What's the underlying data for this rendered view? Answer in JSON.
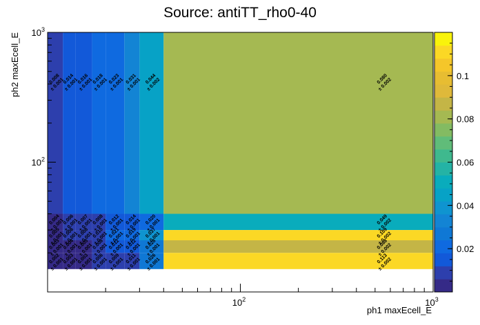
{
  "chart_data": {
    "type": "heatmap",
    "title": "Source: antiTT_rho0-40",
    "xlabel": "ph1 maxEcell_E",
    "ylabel": "ph2 maxEcell_E",
    "x_scale": "log",
    "y_scale": "log",
    "xlim": [
      10,
      1000
    ],
    "ylim": [
      10,
      1000
    ],
    "x_edges": [
      10,
      12,
      14,
      17,
      20,
      25,
      30,
      40,
      1000
    ],
    "y_edges": [
      10,
      15,
      20,
      25,
      30,
      40,
      1000
    ],
    "x_ticks": [
      {
        "value": 100,
        "base": "10",
        "exp": "2"
      },
      {
        "value": 1000,
        "base": "10",
        "exp": "3"
      }
    ],
    "y_ticks": [
      {
        "value": 100,
        "base": "10",
        "exp": "2"
      },
      {
        "value": 1000,
        "base": "10",
        "exp": "3"
      }
    ],
    "zlim": [
      0,
      0.12
    ],
    "colorbar_ticks": [
      "0.02",
      "0.04",
      "0.06",
      "0.08",
      "0.1"
    ],
    "colorbar_tick_values": [
      0.02,
      0.04,
      0.06,
      0.08,
      0.1
    ],
    "palette": [
      "#352a87",
      "#2d3fad",
      "#1259d9",
      "#0f6ae0",
      "#0f78d5",
      "#1384d4",
      "#0f94d0",
      "#07a2c6",
      "#09acbc",
      "#24b3a5",
      "#3fb98e",
      "#60bc79",
      "#83bb62",
      "#a5b952",
      "#c4b546",
      "#dfb93a",
      "#e7bd32",
      "#f5c62a",
      "#fbd825",
      "#f9f30b"
    ],
    "grid": false,
    "cells": [
      {
        "ix": 0,
        "iy": 5,
        "value": 0.008,
        "label": "0.008",
        "error": "± 0.001"
      },
      {
        "ix": 1,
        "iy": 5,
        "value": 0.014,
        "label": "0.014",
        "error": "± 0.001"
      },
      {
        "ix": 2,
        "iy": 5,
        "value": 0.016,
        "label": "0.016",
        "error": "± 0.001"
      },
      {
        "ix": 3,
        "iy": 5,
        "value": 0.018,
        "label": "0.018",
        "error": "± 0.001"
      },
      {
        "ix": 4,
        "iy": 5,
        "value": 0.023,
        "label": "0.023",
        "error": "± 0.001"
      },
      {
        "ix": 5,
        "iy": 5,
        "value": 0.031,
        "label": "0.031",
        "error": "± 0.001"
      },
      {
        "ix": 6,
        "iy": 5,
        "value": 0.044,
        "label": "0.044",
        "error": "± 0.002"
      },
      {
        "ix": 7,
        "iy": 5,
        "value": 0.08,
        "label": "0.080",
        "error": "± 0.002"
      },
      {
        "ix": 0,
        "iy": 4,
        "value": 0.004,
        "label": "0.004",
        "error": "± 0.001"
      },
      {
        "ix": 1,
        "iy": 4,
        "value": 0.006,
        "label": "0.006",
        "error": "± 0.001"
      },
      {
        "ix": 2,
        "iy": 4,
        "value": 0.007,
        "label": "0.007",
        "error": "± 0.001"
      },
      {
        "ix": 3,
        "iy": 4,
        "value": 0.008,
        "label": "0.008",
        "error": "± 0.001"
      },
      {
        "ix": 4,
        "iy": 4,
        "value": 0.012,
        "label": "0.012",
        "error": "± 0.001"
      },
      {
        "ix": 5,
        "iy": 4,
        "value": 0.014,
        "label": "0.014",
        "error": "± 0.001"
      },
      {
        "ix": 6,
        "iy": 4,
        "value": 0.02,
        "label": "0.020",
        "error": "± 0.001"
      },
      {
        "ix": 7,
        "iy": 4,
        "value": 0.049,
        "label": "0.049",
        "error": "± 0.002"
      },
      {
        "ix": 0,
        "iy": 3,
        "value": 0.005,
        "label": "0.005",
        "error": "± 0.001"
      },
      {
        "ix": 1,
        "iy": 3,
        "value": 0.006,
        "label": "0.006",
        "error": "± 0.001"
      },
      {
        "ix": 2,
        "iy": 3,
        "value": 0.008,
        "label": "0.008",
        "error": "± 0.001"
      },
      {
        "ix": 3,
        "iy": 3,
        "value": 0.01,
        "label": "0.010",
        "error": "± 0.001"
      },
      {
        "ix": 4,
        "iy": 3,
        "value": 0.021,
        "label": "0.021",
        "error": "± 0.001"
      },
      {
        "ix": 5,
        "iy": 3,
        "value": 0.019,
        "label": "0.019",
        "error": "± 0.001"
      },
      {
        "ix": 6,
        "iy": 3,
        "value": 0.037,
        "label": "0.037",
        "error": "± 0.001"
      },
      {
        "ix": 7,
        "iy": 3,
        "value": 0.109,
        "label": "0.109",
        "error": "± 0.002"
      },
      {
        "ix": 0,
        "iy": 2,
        "value": 0.003,
        "label": "0.003",
        "error": "± 0.001"
      },
      {
        "ix": 1,
        "iy": 2,
        "value": 0.004,
        "label": "0.004",
        "error": "± 0.001"
      },
      {
        "ix": 2,
        "iy": 2,
        "value": 0.005,
        "label": "0.005",
        "error": "± 0.001"
      },
      {
        "ix": 3,
        "iy": 2,
        "value": 0.008,
        "label": "0.008",
        "error": "± 0.001"
      },
      {
        "ix": 4,
        "iy": 2,
        "value": 0.012,
        "label": "0.012",
        "error": "± 0.001"
      },
      {
        "ix": 5,
        "iy": 2,
        "value": 0.012,
        "label": "0.012",
        "error": "± 0.001"
      },
      {
        "ix": 6,
        "iy": 2,
        "value": 0.028,
        "label": "0.028",
        "error": "± 0.001"
      },
      {
        "ix": 7,
        "iy": 2,
        "value": 0.088,
        "label": "0.088",
        "error": "± 0.002"
      },
      {
        "ix": 0,
        "iy": 1,
        "value": 0.002,
        "label": "0.002",
        "error": "± 0.001"
      },
      {
        "ix": 1,
        "iy": 1,
        "value": 0.003,
        "label": "0.003",
        "error": "± 0.001"
      },
      {
        "ix": 2,
        "iy": 1,
        "value": 0.003,
        "label": "0.003",
        "error": "± 0.001"
      },
      {
        "ix": 3,
        "iy": 1,
        "value": 0.006,
        "label": "0.006",
        "error": "± 0.001"
      },
      {
        "ix": 4,
        "iy": 1,
        "value": 0.009,
        "label": "0.009",
        "error": "± 0.001"
      },
      {
        "ix": 5,
        "iy": 1,
        "value": 0.011,
        "label": "0.011",
        "error": "± 0.001"
      },
      {
        "ix": 6,
        "iy": 1,
        "value": 0.026,
        "label": "0.026",
        "error": "± 0.001"
      },
      {
        "ix": 7,
        "iy": 1,
        "value": 0.113,
        "label": "0.113",
        "error": "± 0.002"
      }
    ]
  }
}
